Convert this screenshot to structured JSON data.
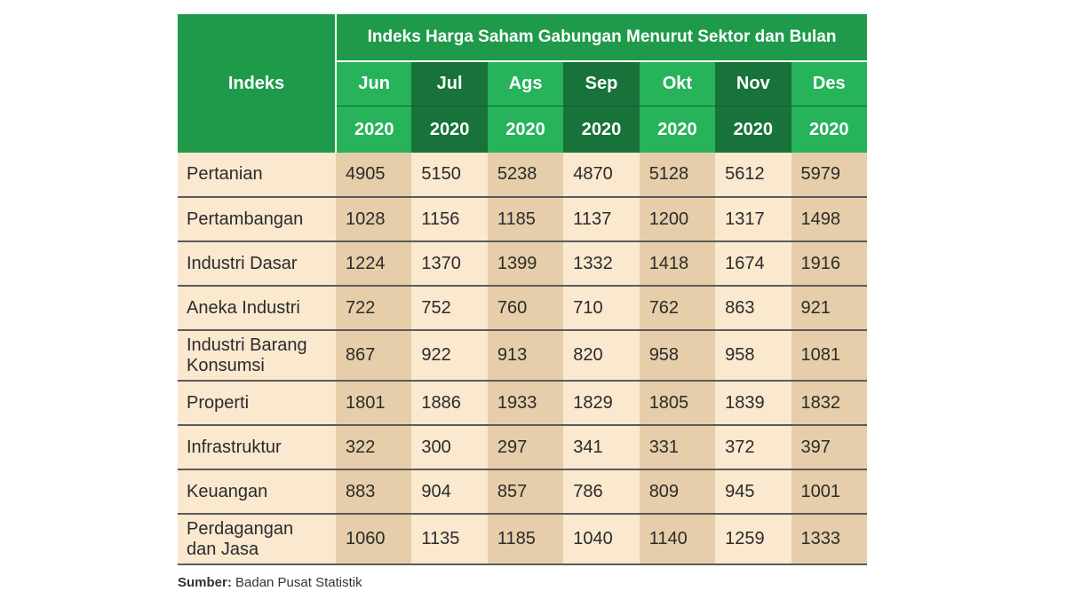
{
  "table": {
    "index_header": "Indeks",
    "group_title": "Indeks Harga Saham Gabungan Menurut Sektor dan Bulan",
    "months": [
      "Jun",
      "Jul",
      "Ags",
      "Sep",
      "Okt",
      "Nov",
      "Des"
    ],
    "years": [
      "2020",
      "2020",
      "2020",
      "2020",
      "2020",
      "2020",
      "2020"
    ],
    "header_colors": [
      "#27b35a",
      "#17733a",
      "#27b35a",
      "#17733a",
      "#27b35a",
      "#17733a",
      "#27b35a"
    ],
    "rows": [
      {
        "label": [
          "Pertanian"
        ],
        "values": [
          "4905",
          "5150",
          "5238",
          "4870",
          "5128",
          "5612",
          "5979"
        ]
      },
      {
        "label": [
          "Pertambangan"
        ],
        "values": [
          "1028",
          "1156",
          "1185",
          "1137",
          "1200",
          "1317",
          "1498"
        ]
      },
      {
        "label": [
          "Industri Dasar"
        ],
        "values": [
          "1224",
          "1370",
          "1399",
          "1332",
          "1418",
          "1674",
          "1916"
        ]
      },
      {
        "label": [
          "Aneka Industri"
        ],
        "values": [
          "722",
          "752",
          "760",
          "710",
          "762",
          "863",
          "921"
        ]
      },
      {
        "label": [
          "Industri Barang",
          "Konsumsi"
        ],
        "values": [
          "867",
          "922",
          "913",
          "820",
          "958",
          "958",
          "1081"
        ]
      },
      {
        "label": [
          "Properti"
        ],
        "values": [
          "1801",
          "1886",
          "1933",
          "1829",
          "1805",
          "1839",
          "1832"
        ]
      },
      {
        "label": [
          "Infrastruktur"
        ],
        "values": [
          "322",
          "300",
          "297",
          "341",
          "331",
          "372",
          "397"
        ]
      },
      {
        "label": [
          "Keuangan"
        ],
        "values": [
          "883",
          "904",
          "857",
          "786",
          "809",
          "945",
          "1001"
        ]
      },
      {
        "label": [
          "Perdagangan",
          "dan Jasa"
        ],
        "values": [
          "1060",
          "1135",
          "1185",
          "1040",
          "1140",
          "1259",
          "1333"
        ]
      }
    ]
  },
  "source": {
    "label": "Sumber:",
    "text": " Badan Pusat Statistik"
  },
  "colors": {
    "header_green": "#1f9a4b",
    "header_light": "#27b35a",
    "header_dark": "#17733a",
    "cell_light": "#fae8cf",
    "cell_tan": "#e6ceaa"
  }
}
